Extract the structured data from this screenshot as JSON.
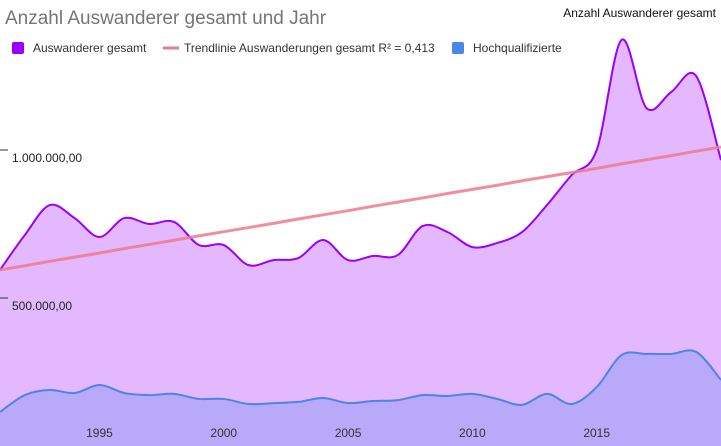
{
  "chart_data": {
    "type": "area",
    "title": "Anzahl Auswanderer gesamt und Jahr",
    "y_axis_label": "Anzahl Auswanderer gesamt",
    "x": [
      1991,
      1992,
      1993,
      1994,
      1995,
      1996,
      1997,
      1998,
      1999,
      2000,
      2001,
      2002,
      2003,
      2004,
      2005,
      2006,
      2007,
      2008,
      2009,
      2010,
      2011,
      2012,
      2013,
      2014,
      2015,
      2016,
      2017,
      2018,
      2019,
      2020
    ],
    "series": [
      {
        "name": "Auswanderer gesamt",
        "color": "#9900ff",
        "kind": "area",
        "values": [
          595000,
          713000,
          814000,
          770000,
          706000,
          770000,
          750000,
          757000,
          679000,
          679000,
          611000,
          628000,
          635000,
          696000,
          628000,
          642000,
          645000,
          743000,
          723000,
          672000,
          686000,
          723000,
          814000,
          916000,
          1000000,
          1372000,
          1142000,
          1196000,
          1250000,
          966000
        ]
      },
      {
        "name": "Trendlinie Auswanderungen gesamt R² = 0,413",
        "color": "#f07a8a",
        "kind": "trend",
        "values": [
          595000,
          609000,
          624000,
          638000,
          652000,
          667000,
          681000,
          695000,
          710000,
          724000,
          738000,
          752000,
          767000,
          781000,
          795000,
          810000,
          824000,
          838000,
          853000,
          867000,
          881000,
          896000,
          910000,
          924000,
          938000,
          953000,
          967000,
          981000,
          996000,
          1010000
        ]
      },
      {
        "name": "Hochqualifizierte",
        "color": "#4a86e8",
        "kind": "area",
        "values": [
          115000,
          172000,
          189000,
          179000,
          206000,
          179000,
          172000,
          176000,
          159000,
          159000,
          142000,
          145000,
          149000,
          162000,
          145000,
          152000,
          155000,
          172000,
          169000,
          176000,
          159000,
          139000,
          176000,
          142000,
          199000,
          307000,
          311000,
          311000,
          318000,
          223000
        ]
      }
    ],
    "xlim": [
      1991,
      2020
    ],
    "xticks": [
      1995,
      2000,
      2005,
      2010,
      2015
    ],
    "ylim": [
      0,
      1500000
    ],
    "yticks": [
      {
        "value": 500000,
        "label": "500.000,00"
      },
      {
        "value": 1000000,
        "label": "1.000.000,00"
      }
    ]
  }
}
